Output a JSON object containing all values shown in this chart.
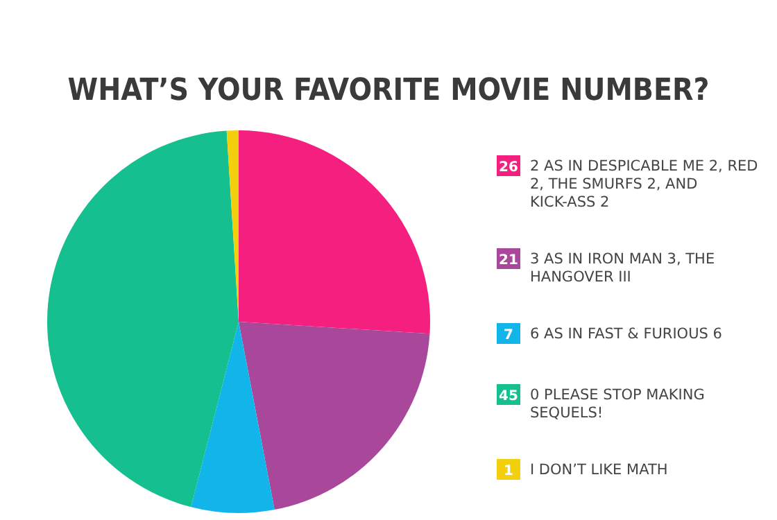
{
  "chart_data": {
    "type": "pie",
    "title": "WHAT’S YOUR FAVORITE MOVIE NUMBER?",
    "categories": [
      "2 AS IN DESPICABLE ME 2, RED 2, THE SMURFS 2, AND KICK-ASS 2",
      "3 AS IN IRON MAN 3, THE HANGOVER III",
      "6 AS IN FAST & FURIOUS 6",
      "0 PLEASE STOP MAKING SEQUELS!",
      "I DON’T LIKE MATH"
    ],
    "values": [
      26,
      21,
      7,
      45,
      1
    ],
    "colors": [
      "#f41f7f",
      "#a9479b",
      "#12b5ea",
      "#16bf8f",
      "#f2d00e"
    ],
    "data_labels": true,
    "legend": "right"
  }
}
